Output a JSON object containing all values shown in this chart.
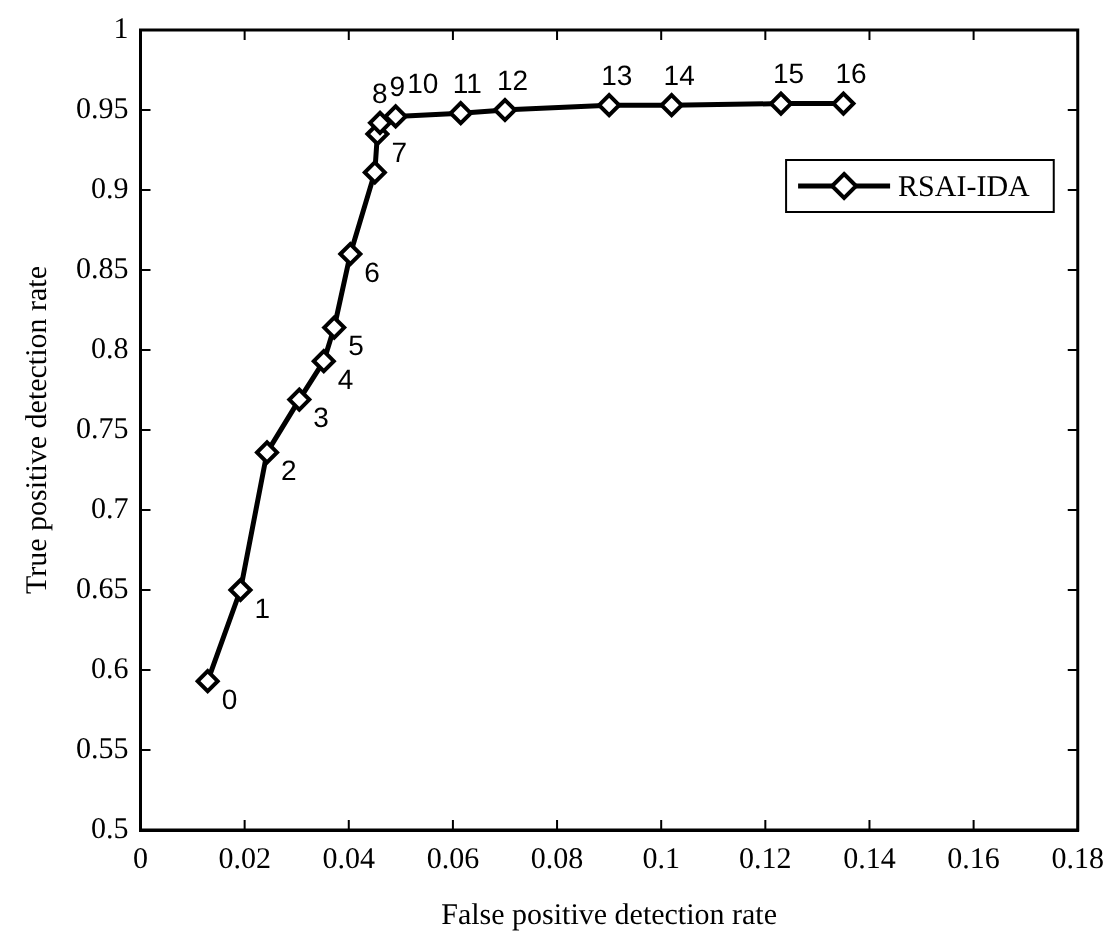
{
  "chart_data": {
    "type": "line",
    "xlabel": "False positive detection rate",
    "ylabel": "True positive detection rate",
    "xlim": [
      0,
      0.18
    ],
    "xticks": [
      0,
      0.02,
      0.04,
      0.06,
      0.08,
      0.1,
      0.12,
      0.14,
      0.16,
      0.18
    ],
    "ylim": [
      0.5,
      1
    ],
    "yticks": [
      0.5,
      0.55,
      0.6,
      0.65,
      0.7,
      0.75,
      0.8,
      0.85,
      0.9,
      0.95,
      1
    ],
    "series": [
      {
        "name": "RSAI-IDA",
        "color": "#000000",
        "x": [
          0.0129,
          0.0192,
          0.0243,
          0.0305,
          0.0352,
          0.0372,
          0.0403,
          0.045,
          0.0455,
          0.046,
          0.049,
          0.0615,
          0.07,
          0.09,
          0.102,
          0.123,
          0.135
        ],
        "values": [
          0.593,
          0.65,
          0.736,
          0.769,
          0.793,
          0.814,
          0.86,
          0.911,
          0.935,
          0.942,
          0.946,
          0.948,
          0.95,
          0.953,
          0.953,
          0.954,
          0.954
        ]
      }
    ],
    "annotations": [
      {
        "text": "0",
        "x": 0.0129,
        "y": 0.593
      },
      {
        "text": "1",
        "x": 0.0192,
        "y": 0.65
      },
      {
        "text": "2",
        "x": 0.0243,
        "y": 0.736
      },
      {
        "text": "3",
        "x": 0.0305,
        "y": 0.769
      },
      {
        "text": "4",
        "x": 0.0352,
        "y": 0.793
      },
      {
        "text": "5",
        "x": 0.0372,
        "y": 0.814
      },
      {
        "text": "6",
        "x": 0.0403,
        "y": 0.86
      },
      {
        "text": "7",
        "x": 0.0455,
        "y": 0.935
      },
      {
        "text": "8",
        "x": 0.046,
        "y": 0.942
      },
      {
        "text": "9",
        "x": 0.049,
        "y": 0.946
      },
      {
        "text": "10",
        "x": 0.0515,
        "y": 0.948
      },
      {
        "text": "11",
        "x": 0.0615,
        "y": 0.948
      },
      {
        "text": "12",
        "x": 0.07,
        "y": 0.95
      },
      {
        "text": "13",
        "x": 0.09,
        "y": 0.953
      },
      {
        "text": "14",
        "x": 0.102,
        "y": 0.953
      },
      {
        "text": "15",
        "x": 0.123,
        "y": 0.954
      },
      {
        "text": "16",
        "x": 0.135,
        "y": 0.954
      }
    ],
    "legend": "top right",
    "marker": "diamond",
    "line_style": "solid",
    "grid": false
  }
}
